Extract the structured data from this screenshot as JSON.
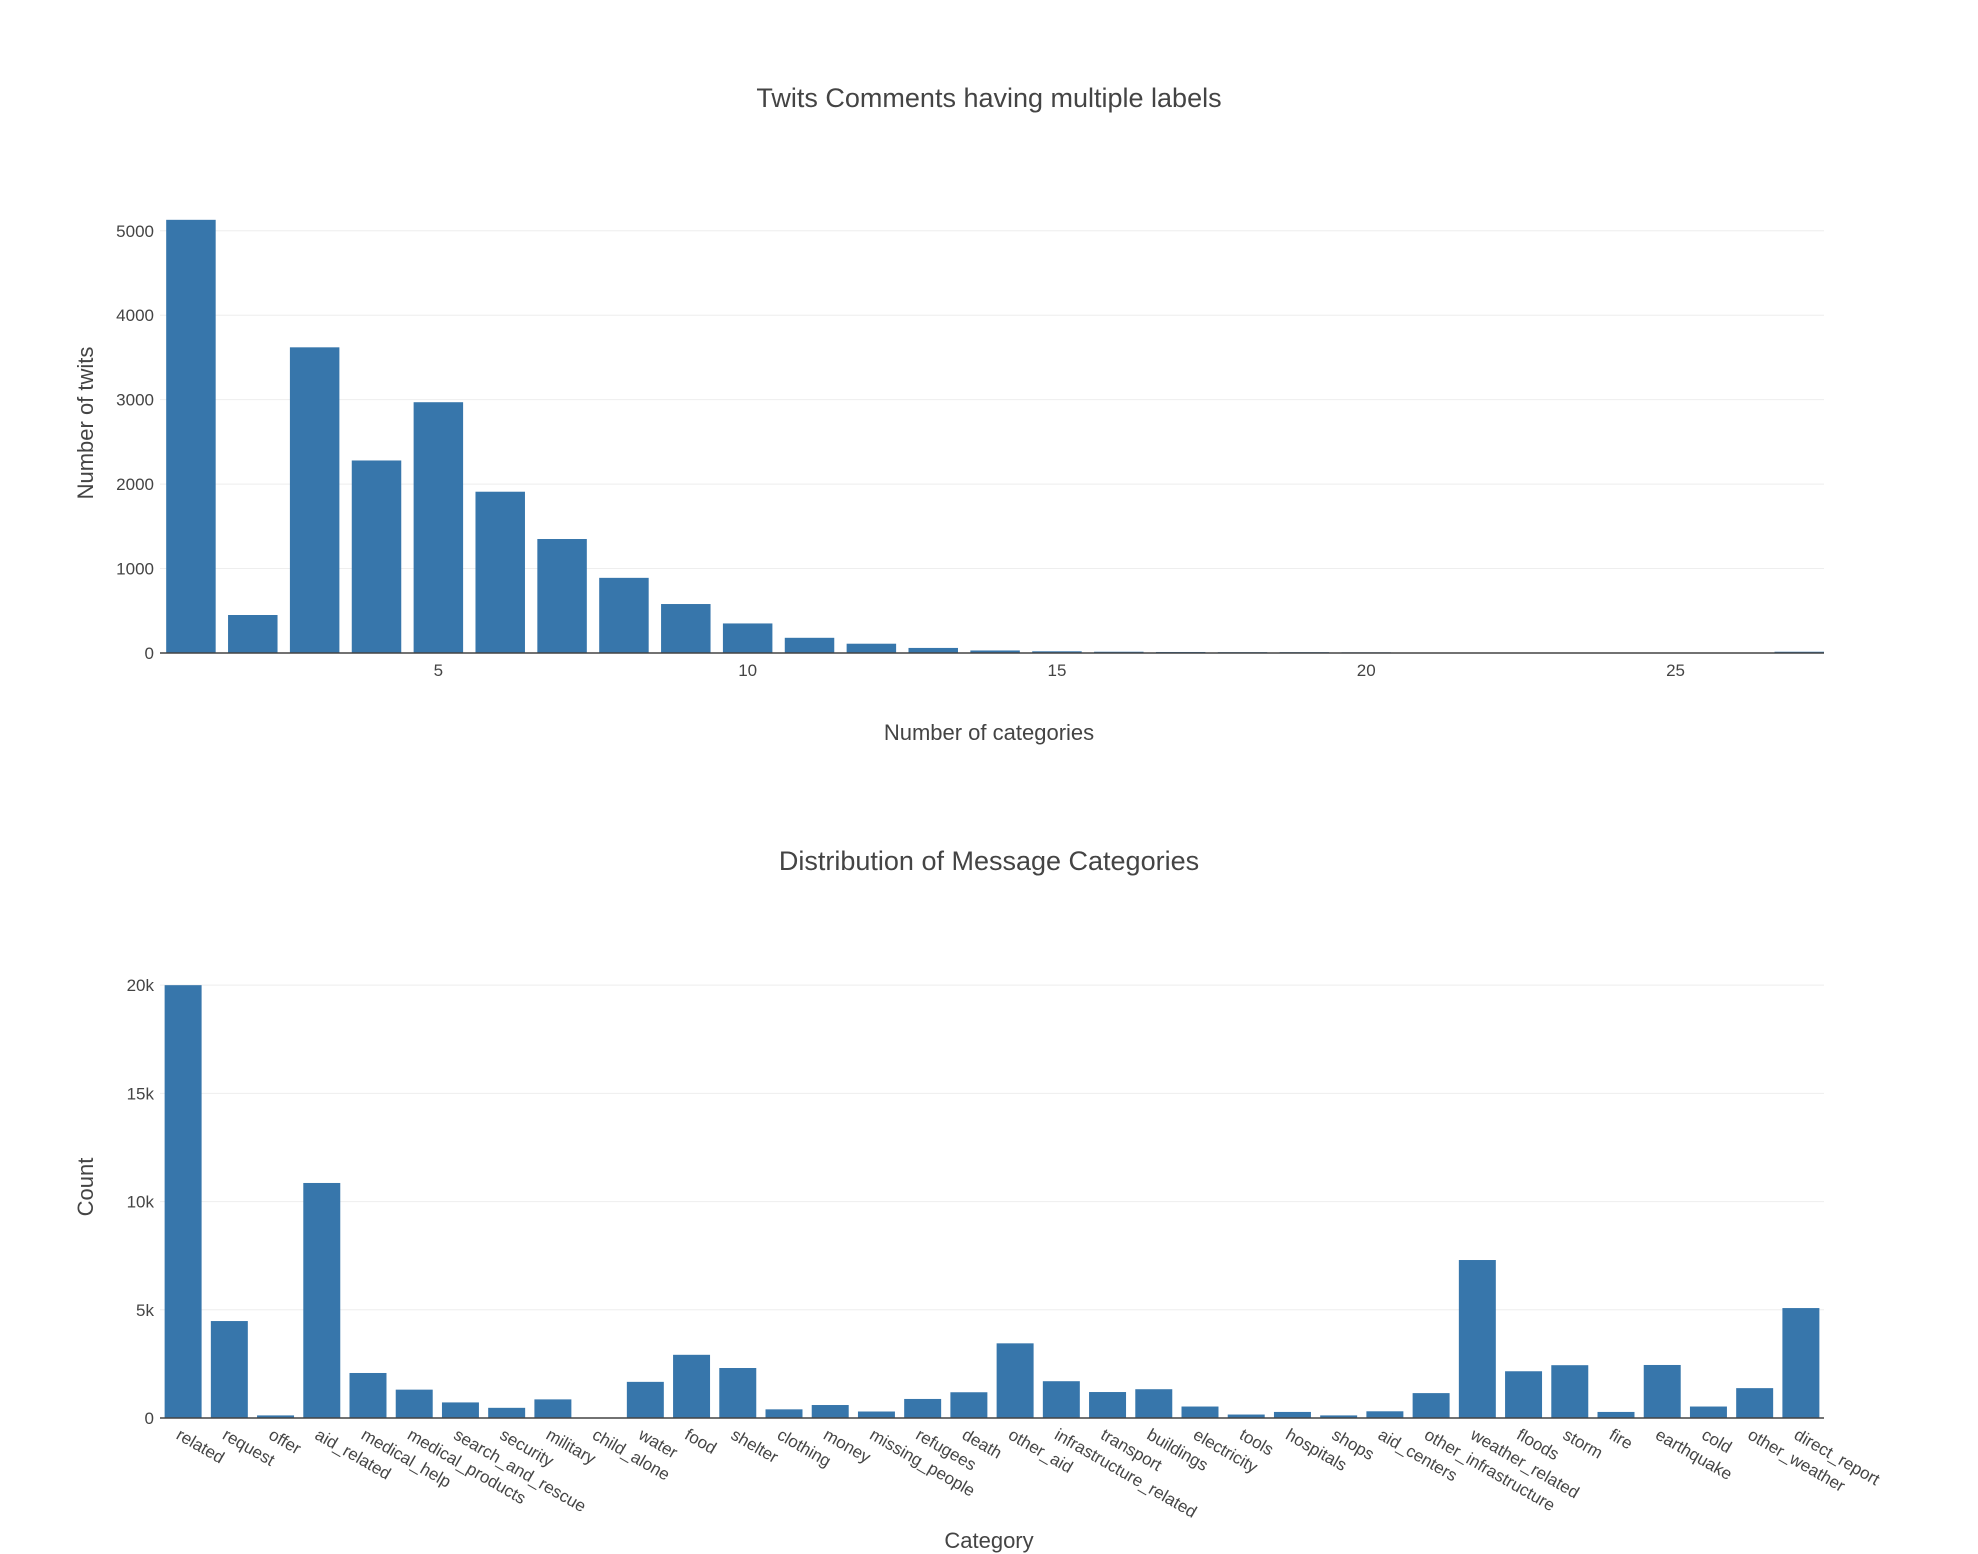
{
  "chart_data": [
    {
      "type": "bar",
      "title": "Twits Comments having multiple labels",
      "xlabel": "Number of categories",
      "ylabel": "Number of twits",
      "x": [
        1,
        2,
        3,
        4,
        5,
        6,
        7,
        8,
        9,
        10,
        11,
        12,
        13,
        14,
        15,
        16,
        17,
        18,
        19,
        20,
        21,
        22,
        24,
        27
      ],
      "values": [
        5130,
        450,
        3620,
        2280,
        2970,
        1910,
        1350,
        890,
        580,
        350,
        180,
        110,
        60,
        30,
        20,
        15,
        12,
        10,
        10,
        8,
        6,
        5,
        3,
        15
      ],
      "xlim": [
        0.5,
        27.4
      ],
      "ylim": [
        0,
        5270
      ],
      "xticks": [
        5,
        10,
        15,
        20,
        25
      ],
      "yticks": [
        0,
        1000,
        2000,
        3000,
        4000,
        5000
      ],
      "ytick_labels": [
        "0",
        "1000",
        "2000",
        "3000",
        "4000",
        "5000"
      ],
      "grid": true,
      "color": "#3776ab"
    },
    {
      "type": "bar",
      "title": "Distribution of Message Categories",
      "xlabel": "Category",
      "ylabel": "Count",
      "categories": [
        "related",
        "request",
        "offer",
        "aid_related",
        "medical_help",
        "medical_products",
        "search_and_rescue",
        "security",
        "military",
        "child_alone",
        "water",
        "food",
        "shelter",
        "clothing",
        "money",
        "missing_people",
        "refugees",
        "death",
        "other_aid",
        "infrastructure_related",
        "transport",
        "buildings",
        "electricity",
        "tools",
        "hospitals",
        "shops",
        "aid_centers",
        "other_infrastructure",
        "weather_related",
        "floods",
        "storm",
        "fire",
        "earthquake",
        "cold",
        "other_weather",
        "direct_report"
      ],
      "values": [
        20000,
        4480,
        120,
        10860,
        2080,
        1310,
        720,
        470,
        860,
        0,
        1670,
        2920,
        2310,
        400,
        600,
        300,
        880,
        1190,
        3450,
        1700,
        1200,
        1330,
        530,
        160,
        280,
        120,
        310,
        1150,
        7300,
        2160,
        2440,
        280,
        2450,
        530,
        1380,
        5080
      ],
      "ylim": [
        0,
        20100
      ],
      "yticks": [
        0,
        5000,
        10000,
        15000,
        20000
      ],
      "ytick_labels": [
        "0",
        "5k",
        "10k",
        "15k",
        "20k"
      ],
      "grid": true,
      "color": "#3776ab"
    }
  ]
}
